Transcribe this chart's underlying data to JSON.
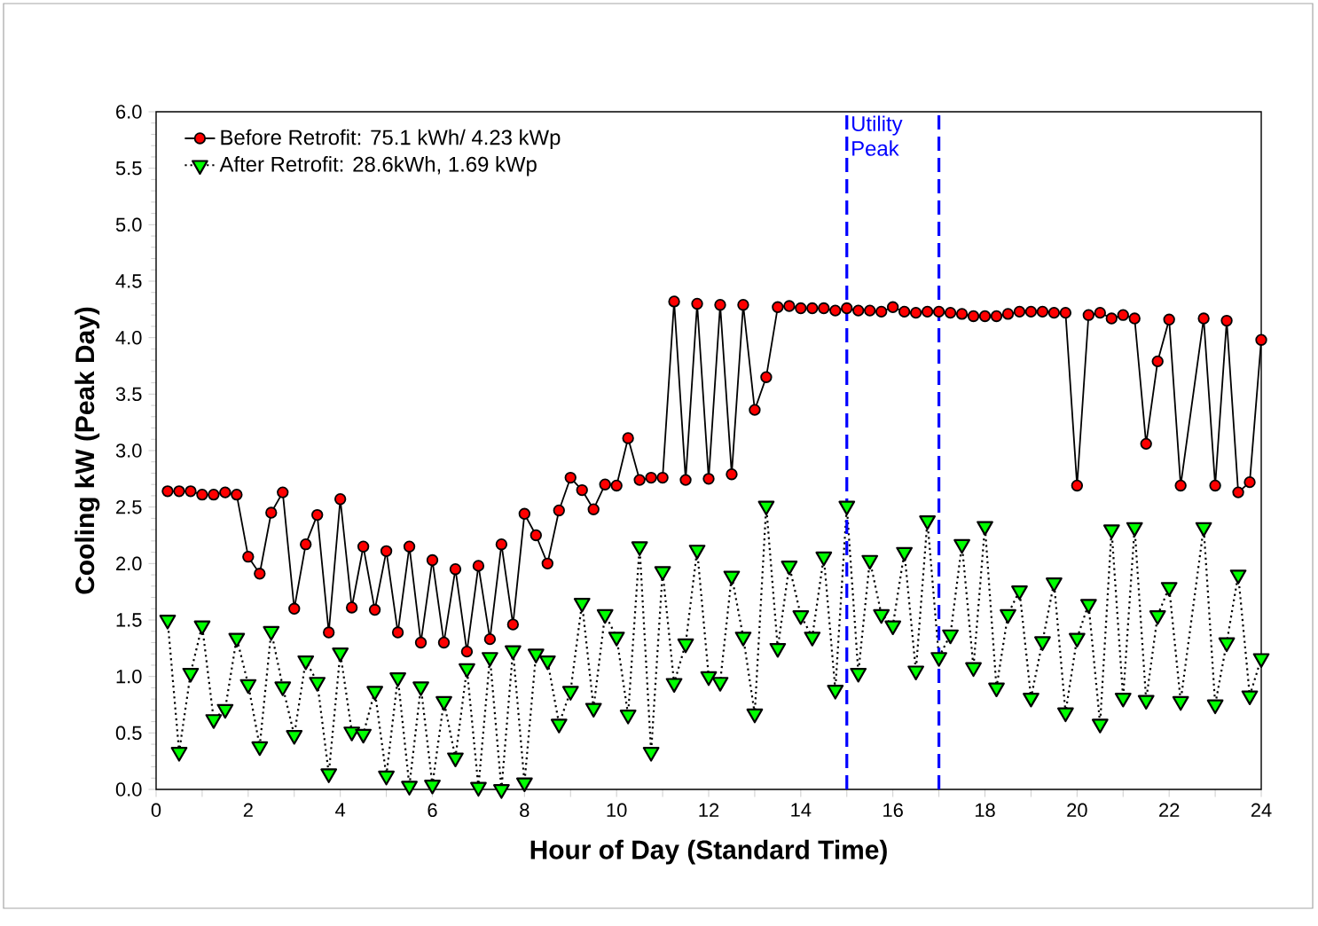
{
  "chart_data": {
    "type": "line",
    "xlabel": "Hour of Day (Standard Time)",
    "ylabel": "Cooling kW (Peak Day)",
    "xlim": [
      0,
      24
    ],
    "ylim": [
      0,
      6
    ],
    "xticks": [
      0,
      {
        "value": 1,
        "label": null
      },
      2,
      {
        "value": 3,
        "label": null
      },
      4,
      {
        "value": 5,
        "label": null
      },
      6,
      {
        "value": 7,
        "label": null
      },
      8,
      {
        "value": 9,
        "label": null
      },
      10,
      {
        "value": 11,
        "label": null
      },
      12,
      {
        "value": 13,
        "label": null
      },
      14,
      {
        "value": 15,
        "label": null
      },
      16,
      {
        "value": 17,
        "label": null
      },
      18,
      {
        "value": 19,
        "label": null
      },
      20,
      {
        "value": 21,
        "label": null
      },
      22,
      {
        "value": 23,
        "label": null
      },
      24
    ],
    "yticks": [
      {
        "value": 0,
        "label": "0.0"
      },
      0.5,
      {
        "value": 1,
        "label": "1.0"
      },
      1.5,
      {
        "value": 2,
        "label": "2.0"
      },
      2.5,
      {
        "value": 3,
        "label": "3.0"
      },
      3.5,
      {
        "value": 4,
        "label": "4.0"
      },
      4.5,
      {
        "value": 5,
        "label": "5.0"
      },
      5.5,
      {
        "value": 6,
        "label": "6.0"
      }
    ],
    "grid": false,
    "legend": "top left",
    "x": [
      0.25,
      0.5,
      0.75,
      1,
      1.25,
      1.5,
      1.75,
      2,
      2.25,
      2.5,
      2.75,
      3,
      3.25,
      3.5,
      3.75,
      4,
      4.25,
      4.5,
      4.75,
      5,
      5.25,
      5.5,
      5.75,
      6,
      6.25,
      6.5,
      6.75,
      7,
      7.25,
      7.5,
      7.75,
      8,
      8.25,
      8.5,
      8.75,
      9,
      9.25,
      9.5,
      9.75,
      10,
      10.25,
      10.5,
      10.75,
      11,
      11.25,
      11.5,
      11.75,
      12,
      12.25,
      12.5,
      12.75,
      13,
      13.25,
      13.5,
      13.75,
      14,
      14.25,
      14.5,
      14.75,
      15,
      15.25,
      15.5,
      15.75,
      16,
      16.25,
      16.5,
      16.75,
      17,
      17.25,
      17.5,
      17.75,
      18,
      18.25,
      18.5,
      18.75,
      19,
      19.25,
      19.5,
      19.75,
      20,
      20.25,
      20.5,
      20.75,
      21,
      21.25,
      21.5,
      21.75,
      22,
      22.25,
      22.75,
      23,
      23.25,
      23.5,
      23.75,
      24
    ],
    "series": [
      {
        "name": "Before Retrofit:  75.1 kWh/ 4.23 kWp",
        "color": "#ff0000",
        "marker": "circle",
        "line_style": "solid",
        "values": [
          2.64,
          2.64,
          2.64,
          2.61,
          2.61,
          2.63,
          2.61,
          2.06,
          1.91,
          2.45,
          2.63,
          1.6,
          2.17,
          2.43,
          1.39,
          2.57,
          1.61,
          2.15,
          1.59,
          2.11,
          1.39,
          2.15,
          1.3,
          2.03,
          1.3,
          1.95,
          1.22,
          1.98,
          1.33,
          2.17,
          1.46,
          2.44,
          2.25,
          2.0,
          2.47,
          2.76,
          2.65,
          2.48,
          2.7,
          2.69,
          3.11,
          2.74,
          2.76,
          2.76,
          4.32,
          2.74,
          4.3,
          2.75,
          4.29,
          2.79,
          4.29,
          3.36,
          3.65,
          4.27,
          4.28,
          4.26,
          4.26,
          4.26,
          4.24,
          4.26,
          4.24,
          4.24,
          4.23,
          4.27,
          4.23,
          4.22,
          4.23,
          4.23,
          4.22,
          4.21,
          4.19,
          4.19,
          4.19,
          4.21,
          4.23,
          4.23,
          4.23,
          4.22,
          4.22,
          2.69,
          4.2,
          4.22,
          4.17,
          4.2,
          4.17,
          3.06,
          3.79,
          4.16,
          2.69,
          4.17,
          2.69,
          4.15,
          2.63,
          2.72,
          3.98
        ]
      },
      {
        "name": "After Retrofit: 28.6kWh, 1.69 kWp",
        "color": "#00ff00",
        "marker": "triangle",
        "line_style": "dotted",
        "values": [
          1.5,
          0.33,
          1.03,
          1.45,
          0.62,
          0.71,
          1.34,
          0.93,
          0.38,
          1.4,
          0.91,
          0.48,
          1.14,
          0.95,
          0.14,
          1.21,
          0.51,
          0.49,
          0.87,
          0.12,
          0.99,
          0.03,
          0.91,
          0.04,
          0.78,
          0.28,
          1.07,
          0.02,
          1.17,
          0.0,
          1.23,
          0.06,
          1.2,
          1.14,
          0.58,
          0.87,
          1.65,
          0.72,
          1.55,
          1.35,
          0.66,
          2.15,
          0.33,
          1.93,
          0.94,
          1.29,
          2.12,
          1.0,
          0.95,
          1.89,
          1.35,
          0.67,
          2.51,
          1.25,
          1.98,
          1.54,
          1.35,
          2.06,
          0.88,
          2.51,
          1.03,
          2.03,
          1.55,
          1.45,
          2.1,
          1.05,
          2.38,
          1.17,
          1.37,
          2.17,
          1.08,
          2.33,
          0.9,
          1.55,
          1.76,
          0.81,
          1.31,
          1.83,
          0.68,
          1.34,
          1.64,
          0.58,
          2.3,
          0.81,
          2.32,
          0.79,
          1.54,
          1.79,
          0.78,
          2.32,
          0.75,
          1.3,
          1.9,
          0.83,
          1.16
        ]
      }
    ],
    "ref_lines": [
      {
        "axis": "x",
        "value": 15,
        "label": "Utility Peak",
        "color": "#0000ff",
        "line_style": "dashed"
      },
      {
        "axis": "x",
        "value": 17,
        "color": "#0000ff",
        "line_style": "dashed"
      }
    ]
  }
}
